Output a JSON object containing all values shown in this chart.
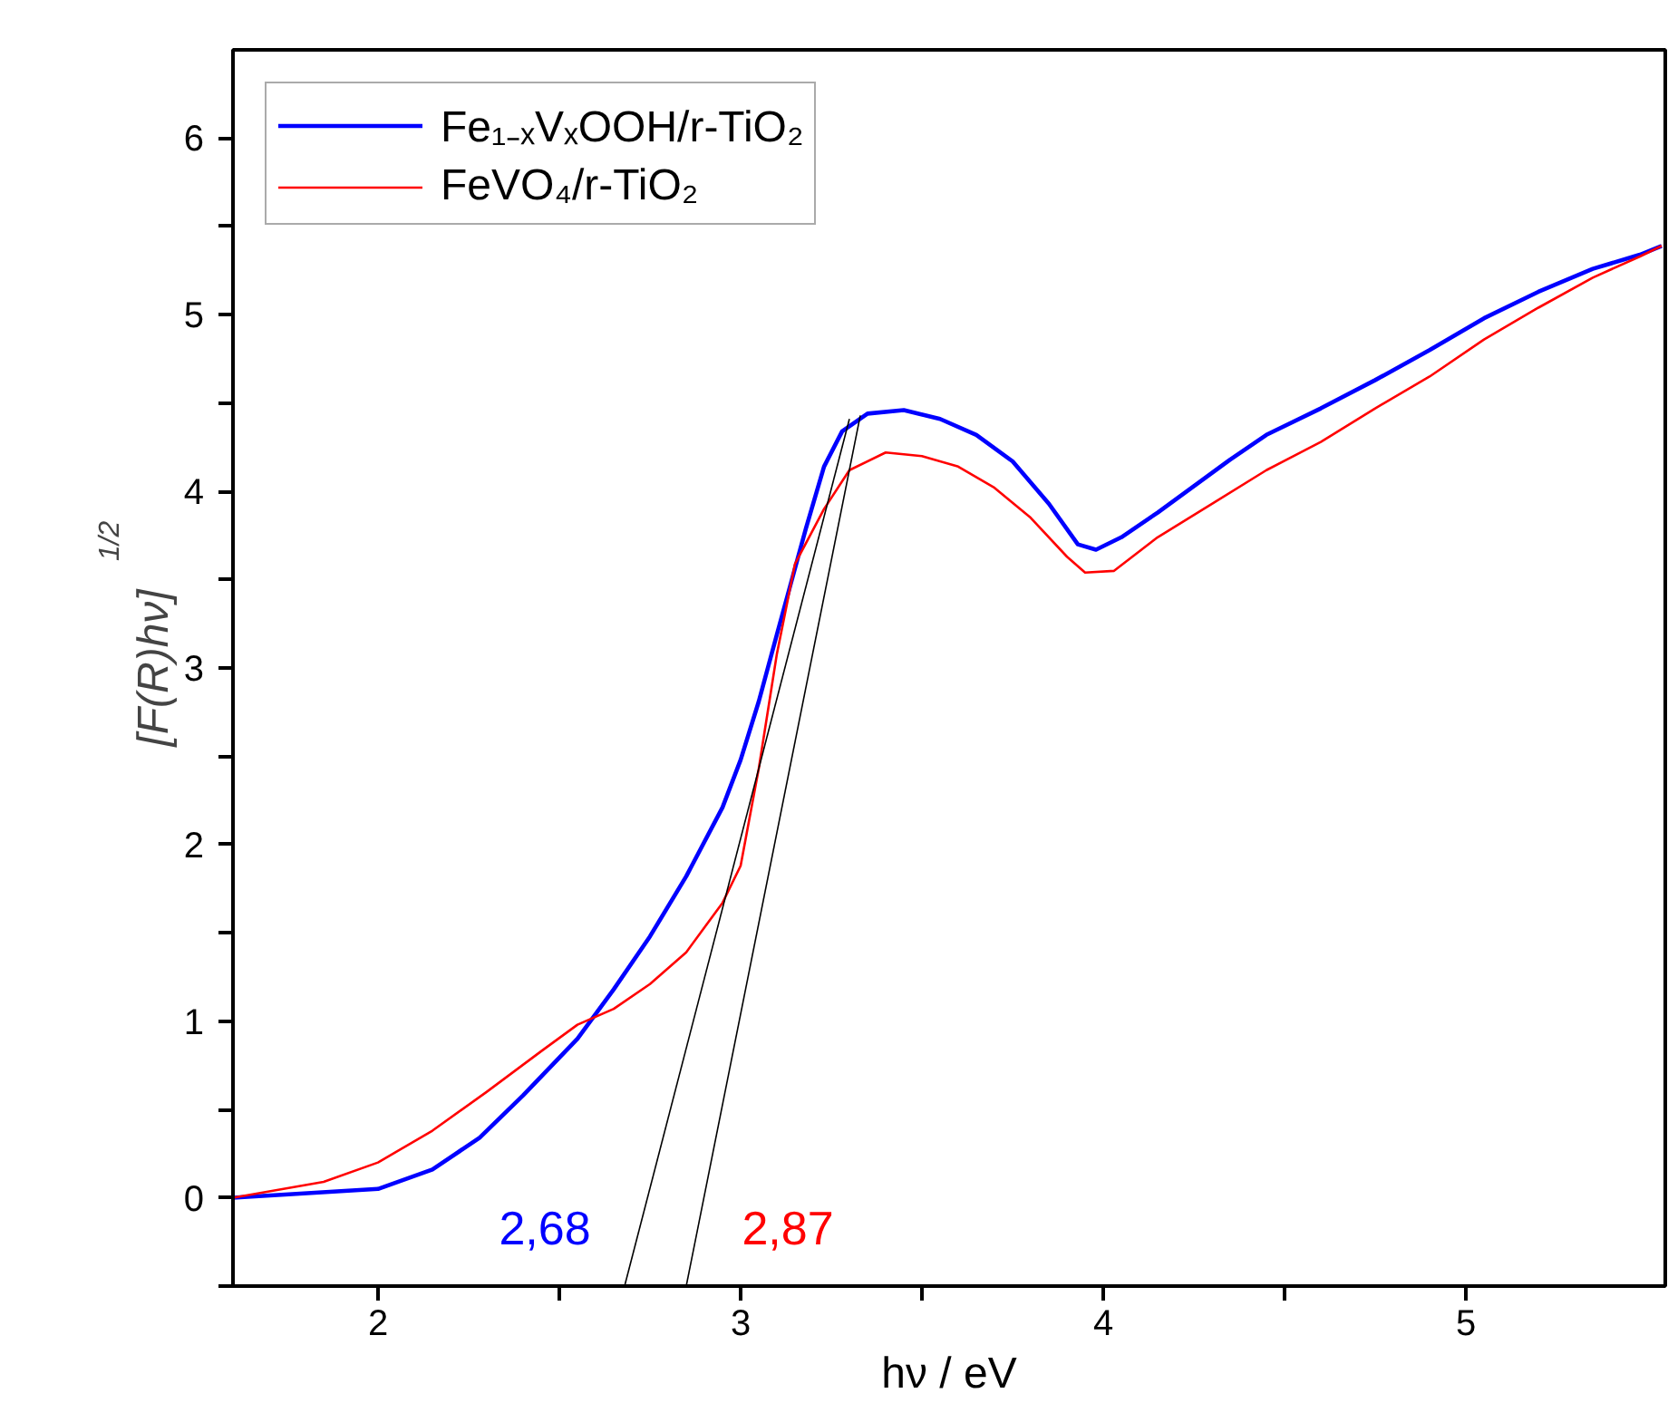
{
  "chart_data": {
    "type": "line",
    "xlabel": "hν / eV",
    "ylabel": "[F(R)hν]$^{1/2}$",
    "xlim": [
      1.6,
      5.55
    ],
    "ylim": [
      -0.5,
      6.5
    ],
    "xticks": [
      2,
      {
        "value": 2.5,
        "label": null
      },
      3,
      {
        "value": 3.5,
        "label": null
      },
      4,
      {
        "value": 4.5,
        "label": null
      },
      5
    ],
    "yticks": [
      {
        "value": -0.5,
        "label": null
      },
      0,
      {
        "value": 0.5,
        "label": null
      },
      1,
      {
        "value": 1.5,
        "label": null
      },
      2,
      {
        "value": 2.5,
        "label": null
      },
      3,
      {
        "value": 3.5,
        "label": null
      },
      4,
      {
        "value": 4.5,
        "label": null
      },
      5,
      {
        "value": 5.5,
        "label": null
      },
      6
    ],
    "grid": false,
    "legend": "top left",
    "series": [
      {
        "name": "Fe₁₋ₓVₓOOH/r-TiO₂",
        "color": "#0000ff",
        "x": [
          1.6,
          2.0,
          2.15,
          2.28,
          2.4,
          2.55,
          2.65,
          2.75,
          2.85,
          2.95,
          3.0,
          3.05,
          3.1,
          3.18,
          3.23,
          3.28,
          3.35,
          3.45,
          3.55,
          3.65,
          3.75,
          3.85,
          3.93,
          3.98,
          4.05,
          4.15,
          4.25,
          4.35,
          4.45,
          4.6,
          4.75,
          4.9,
          5.05,
          5.2,
          5.35,
          5.48,
          5.54
        ],
        "values": [
          0,
          0.05,
          0.16,
          0.34,
          0.58,
          0.9,
          1.18,
          1.48,
          1.82,
          2.21,
          2.48,
          2.81,
          3.19,
          3.79,
          4.14,
          4.34,
          4.44,
          4.46,
          4.41,
          4.32,
          4.17,
          3.93,
          3.7,
          3.67,
          3.74,
          3.88,
          4.03,
          4.18,
          4.32,
          4.47,
          4.63,
          4.8,
          4.98,
          5.13,
          5.26,
          5.34,
          5.39
        ]
      },
      {
        "name": "FeVO₄/r-TiO₂",
        "color": "#ff0000",
        "x": [
          1.6,
          1.85,
          2.0,
          2.15,
          2.3,
          2.45,
          2.55,
          2.65,
          2.75,
          2.85,
          2.95,
          3.0,
          3.05,
          3.1,
          3.15,
          3.23,
          3.3,
          3.4,
          3.5,
          3.6,
          3.7,
          3.8,
          3.9,
          3.95,
          4.03,
          4.15,
          4.3,
          4.45,
          4.6,
          4.75,
          4.9,
          5.05,
          5.2,
          5.35,
          5.48,
          5.54
        ],
        "values": [
          0,
          0.09,
          0.2,
          0.38,
          0.6,
          0.83,
          0.98,
          1.07,
          1.21,
          1.39,
          1.67,
          1.88,
          2.43,
          3.08,
          3.59,
          3.9,
          4.12,
          4.22,
          4.2,
          4.14,
          4.02,
          3.85,
          3.63,
          3.54,
          3.55,
          3.74,
          3.93,
          4.12,
          4.28,
          4.47,
          4.65,
          4.86,
          5.04,
          5.21,
          5.33,
          5.39
        ]
      },
      {
        "type": "line",
        "color": "#000000",
        "x": [
          2.68,
          3.3
        ],
        "values": [
          -0.5,
          4.41
        ]
      },
      {
        "type": "line",
        "color": "#000000",
        "x": [
          2.85,
          3.33
        ],
        "values": [
          -0.5,
          4.43
        ]
      }
    ],
    "annotations": [
      "2,68",
      "2,87"
    ]
  }
}
